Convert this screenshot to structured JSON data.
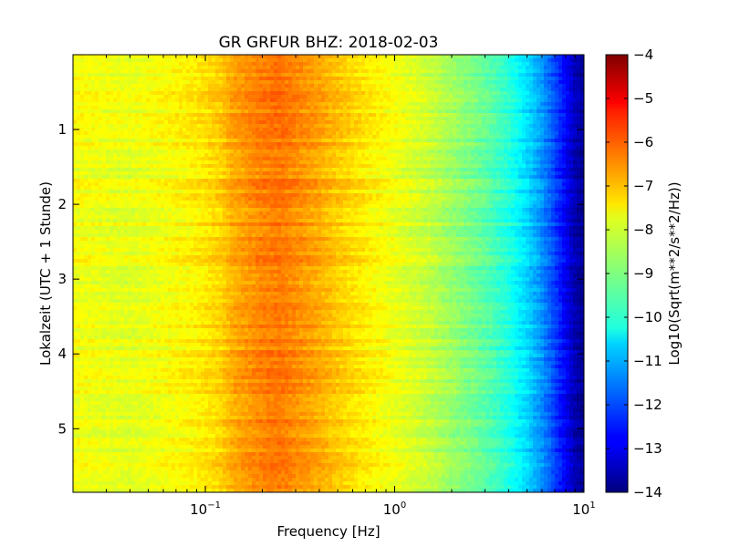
{
  "chart_data": {
    "type": "heatmap",
    "title": "GR GRFUR BHZ: 2018-02-03",
    "xlabel": "Frequency [Hz]",
    "ylabel": "Lokalzeit (UTC + 1 Stunde)",
    "x_scale": "log",
    "xlim": [
      0.02,
      10
    ],
    "ylim": [
      5.85,
      0
    ],
    "x_ticks": [
      {
        "value": 0.1,
        "base": "10",
        "exp": "−1"
      },
      {
        "value": 1,
        "base": "10",
        "exp": "0"
      },
      {
        "value": 10,
        "base": "10",
        "exp": "1"
      }
    ],
    "y_ticks": [
      1,
      2,
      3,
      4,
      5
    ],
    "y_tick_labels": [
      "1",
      "2",
      "3",
      "4",
      "5"
    ],
    "colorbar": {
      "label": "Log10(Sqrt(m**2/s**2/Hz))",
      "range": [
        -14,
        -4
      ],
      "ticks": [
        -4,
        -5,
        -6,
        -7,
        -8,
        -9,
        -10,
        -11,
        -12,
        -13,
        -14
      ],
      "tick_labels": [
        "−4",
        "−5",
        "−6",
        "−7",
        "−8",
        "−9",
        "−10",
        "−11",
        "−12",
        "−13",
        "−14"
      ],
      "colormap": "jet"
    },
    "spectrum_profile": {
      "frequency_hz": [
        0.02,
        0.04,
        0.06,
        0.09,
        0.12,
        0.14,
        0.2,
        0.25,
        0.3,
        0.4,
        0.5,
        0.6,
        0.8,
        1.0,
        1.5,
        2.0,
        3.0,
        4.0,
        5.0,
        6.0,
        7.0,
        8.0,
        9.0,
        10.0
      ],
      "log10_amplitude": [
        -7.8,
        -8.0,
        -7.8,
        -7.6,
        -7.3,
        -6.9,
        -6.5,
        -6.4,
        -6.6,
        -6.9,
        -7.2,
        -7.4,
        -7.7,
        -7.9,
        -8.3,
        -8.7,
        -9.3,
        -9.9,
        -10.6,
        -11.3,
        -12.1,
        -12.8,
        -13.5,
        -13.8
      ]
    }
  }
}
